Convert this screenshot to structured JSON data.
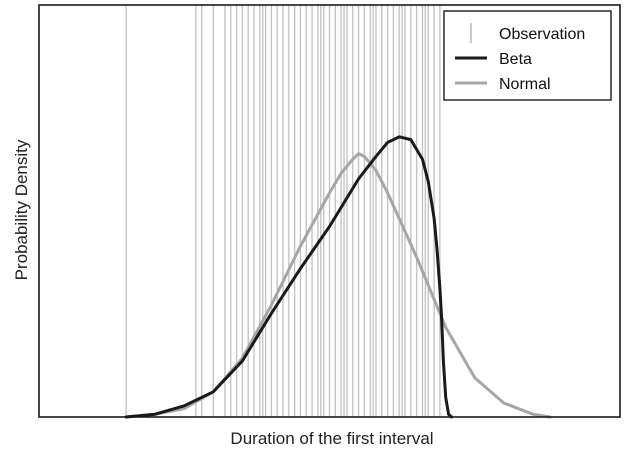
{
  "chart_data": {
    "type": "line",
    "xlabel": "Duration of the first interval",
    "ylabel": "Probability Density",
    "x_ticks_shown": false,
    "y_ticks_shown": false,
    "grid": false,
    "legend_position": "top-right",
    "xlim": [
      0,
      100
    ],
    "ylim": [
      0,
      1
    ],
    "observations": [
      15,
      27,
      28,
      30,
      32,
      33,
      34,
      35,
      36,
      37,
      38,
      38.5,
      39,
      40,
      41,
      42,
      43,
      44,
      45,
      46,
      47,
      48,
      48.5,
      49,
      50,
      51,
      52,
      52.5,
      53,
      54,
      55,
      56,
      57,
      57.5,
      58,
      59,
      60,
      61,
      62,
      62.5,
      63,
      64,
      65,
      66,
      66.5,
      67,
      68,
      69
    ],
    "series": [
      {
        "name": "Beta",
        "color": "#1a1a1a",
        "x": [
          15,
          20,
          25,
          30,
          35,
          40,
          45,
          50,
          55,
          58,
          60,
          62,
          64,
          66,
          67,
          68,
          68.5,
          69,
          69.3,
          69.6,
          70,
          70.5,
          71
        ],
        "y": [
          0,
          0.01,
          0.04,
          0.09,
          0.2,
          0.37,
          0.53,
          0.68,
          0.85,
          0.93,
          0.98,
          1.0,
          0.99,
          0.92,
          0.84,
          0.71,
          0.6,
          0.46,
          0.35,
          0.2,
          0.07,
          0.01,
          0
        ]
      },
      {
        "name": "Normal",
        "color": "#a6a6a6",
        "x": [
          15,
          20,
          25,
          30,
          35,
          40,
          45,
          50,
          52,
          54,
          55,
          56,
          58,
          60,
          65,
          70,
          75,
          80,
          85,
          88
        ],
        "y": [
          0,
          0.01,
          0.03,
          0.09,
          0.21,
          0.4,
          0.61,
          0.8,
          0.87,
          0.92,
          0.94,
          0.93,
          0.88,
          0.8,
          0.57,
          0.32,
          0.14,
          0.05,
          0.01,
          0
        ]
      }
    ],
    "legend": [
      {
        "label": "Observation",
        "style": "tick",
        "color": "#bdbdbd"
      },
      {
        "label": "Beta",
        "style": "line",
        "color": "#1a1a1a"
      },
      {
        "label": "Normal",
        "style": "line",
        "color": "#a6a6a6"
      }
    ],
    "observation_color": "#c4c4c4"
  }
}
